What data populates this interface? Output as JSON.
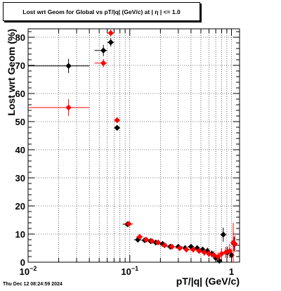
{
  "title": "Lost wrt Geom for Global vs pT/|q| (GeV/c) at |  η  | <= 1.0",
  "timestamp": "Thu Dec 12 08:24:59 2024",
  "colors": {
    "black_series": "#000000",
    "red_series": "#ff0000",
    "grid": "#000000"
  },
  "chart_data": {
    "type": "scatter",
    "title": "Lost wrt Geom for Global vs pT/|q| (GeV/c) at |  η  | <= 1.0",
    "xlabel": "pT/|q| (GeV/c)",
    "ylabel": "Lost wrt Geom (%)",
    "x_scale": "log",
    "xlim": [
      0.01,
      1.2
    ],
    "ylim": [
      0,
      83
    ],
    "grid": true,
    "x_ticks": [
      {
        "value": 0.01,
        "base": "10",
        "exp": "−2"
      },
      {
        "value": 0.1,
        "base": "10",
        "exp": "−1"
      },
      {
        "value": 1,
        "base": "1",
        "exp": ""
      }
    ],
    "y_ticks": [
      "0",
      "10",
      "20",
      "30",
      "40",
      "50",
      "60",
      "70",
      "80"
    ],
    "series": [
      {
        "color": "#000000",
        "points": [
          {
            "x": 0.025,
            "y": 69.8,
            "xlo": 0.01,
            "xhi": 0.04,
            "ey": 2.5
          },
          {
            "x": 0.055,
            "y": 75.3,
            "xlo": 0.045,
            "xhi": 0.06,
            "ey": 2.0
          },
          {
            "x": 0.065,
            "y": 78.2,
            "xlo": 0.06,
            "xhi": 0.07,
            "ey": 1.5
          },
          {
            "x": 0.075,
            "y": 47.8,
            "xlo": 0.07,
            "xhi": 0.08,
            "ey": 1.0
          },
          {
            "x": 0.095,
            "y": 13.5,
            "xlo": 0.085,
            "xhi": 0.105,
            "ey": 0.8
          },
          {
            "x": 0.12,
            "y": 8.0,
            "xlo": 0.11,
            "xhi": 0.13,
            "ey": 0.8
          },
          {
            "x": 0.14,
            "y": 7.8,
            "xlo": 0.13,
            "xhi": 0.15,
            "ey": 0.8
          },
          {
            "x": 0.16,
            "y": 7.5,
            "xlo": 0.15,
            "xhi": 0.17,
            "ey": 0.8
          },
          {
            "x": 0.18,
            "y": 7.0,
            "xlo": 0.17,
            "xhi": 0.19,
            "ey": 0.8
          },
          {
            "x": 0.21,
            "y": 6.5,
            "xlo": 0.19,
            "xhi": 0.23,
            "ey": 0.8
          },
          {
            "x": 0.25,
            "y": 5.5,
            "xlo": 0.23,
            "xhi": 0.27,
            "ey": 0.8
          },
          {
            "x": 0.3,
            "y": 5.5,
            "xlo": 0.27,
            "xhi": 0.33,
            "ey": 0.8
          },
          {
            "x": 0.35,
            "y": 5.0,
            "xlo": 0.33,
            "xhi": 0.37,
            "ey": 0.8
          },
          {
            "x": 0.4,
            "y": 5.5,
            "xlo": 0.37,
            "xhi": 0.43,
            "ey": 0.8
          },
          {
            "x": 0.46,
            "y": 5.0,
            "xlo": 0.43,
            "xhi": 0.49,
            "ey": 1.0
          },
          {
            "x": 0.52,
            "y": 4.5,
            "xlo": 0.49,
            "xhi": 0.55,
            "ey": 1.0
          },
          {
            "x": 0.58,
            "y": 4.0,
            "xlo": 0.55,
            "xhi": 0.61,
            "ey": 1.2
          },
          {
            "x": 0.64,
            "y": 3.0,
            "xlo": 0.61,
            "xhi": 0.67,
            "ey": 1.2
          },
          {
            "x": 0.7,
            "y": 1.5,
            "xlo": 0.67,
            "xhi": 0.73,
            "ey": 1.5
          },
          {
            "x": 0.76,
            "y": 0.5,
            "xlo": 0.73,
            "xhi": 0.79,
            "ey": 1.5
          },
          {
            "x": 0.83,
            "y": 9.8,
            "xlo": 0.79,
            "xhi": 0.87,
            "ey": 2.5
          },
          {
            "x": 0.91,
            "y": 3.5,
            "xlo": 0.87,
            "xhi": 0.95,
            "ey": 2.0
          },
          {
            "x": 1.0,
            "y": 2.5,
            "xlo": 0.95,
            "xhi": 1.05,
            "ey": 2.0
          },
          {
            "x": 1.06,
            "y": 6.5,
            "xlo": 1.03,
            "xhi": 1.1,
            "ey": 2.5
          }
        ]
      },
      {
        "color": "#ff0000",
        "points": [
          {
            "x": 0.025,
            "y": 55.0,
            "xlo": 0.01,
            "xhi": 0.04,
            "ey": 3.0
          },
          {
            "x": 0.055,
            "y": 70.8,
            "xlo": 0.045,
            "xhi": 0.06,
            "ey": 1.5
          },
          {
            "x": 0.065,
            "y": 81.5,
            "xlo": 0.06,
            "xhi": 0.07,
            "ey": 1.2
          },
          {
            "x": 0.075,
            "y": 50.5,
            "xlo": 0.07,
            "xhi": 0.08,
            "ey": 1.0
          },
          {
            "x": 0.098,
            "y": 13.6,
            "xlo": 0.088,
            "xhi": 0.108,
            "ey": 0.8
          },
          {
            "x": 0.125,
            "y": 9.0,
            "xlo": 0.115,
            "xhi": 0.135,
            "ey": 0.8
          },
          {
            "x": 0.145,
            "y": 8.0,
            "xlo": 0.135,
            "xhi": 0.155,
            "ey": 0.8
          },
          {
            "x": 0.165,
            "y": 7.5,
            "xlo": 0.155,
            "xhi": 0.175,
            "ey": 0.8
          },
          {
            "x": 0.19,
            "y": 7.0,
            "xlo": 0.18,
            "xhi": 0.2,
            "ey": 0.8
          },
          {
            "x": 0.22,
            "y": 6.0,
            "xlo": 0.2,
            "xhi": 0.24,
            "ey": 0.8
          },
          {
            "x": 0.26,
            "y": 5.5,
            "xlo": 0.24,
            "xhi": 0.28,
            "ey": 0.8
          },
          {
            "x": 0.31,
            "y": 5.0,
            "xlo": 0.28,
            "xhi": 0.34,
            "ey": 0.8
          },
          {
            "x": 0.36,
            "y": 4.5,
            "xlo": 0.34,
            "xhi": 0.38,
            "ey": 0.8
          },
          {
            "x": 0.42,
            "y": 4.5,
            "xlo": 0.38,
            "xhi": 0.46,
            "ey": 1.0
          },
          {
            "x": 0.48,
            "y": 4.0,
            "xlo": 0.46,
            "xhi": 0.5,
            "ey": 1.0
          },
          {
            "x": 0.54,
            "y": 3.5,
            "xlo": 0.5,
            "xhi": 0.58,
            "ey": 1.2
          },
          {
            "x": 0.6,
            "y": 3.0,
            "xlo": 0.58,
            "xhi": 0.62,
            "ey": 1.2
          },
          {
            "x": 0.67,
            "y": 2.5,
            "xlo": 0.62,
            "xhi": 0.72,
            "ey": 1.5
          },
          {
            "x": 0.74,
            "y": 2.0,
            "xlo": 0.72,
            "xhi": 0.76,
            "ey": 1.5
          },
          {
            "x": 0.8,
            "y": 3.0,
            "xlo": 0.76,
            "xhi": 0.84,
            "ey": 2.0
          },
          {
            "x": 0.88,
            "y": 3.5,
            "xlo": 0.84,
            "xhi": 0.92,
            "ey": 2.0
          },
          {
            "x": 0.96,
            "y": 4.0,
            "xlo": 0.92,
            "xhi": 1.0,
            "ey": 2.5
          },
          {
            "x": 1.04,
            "y": 7.0,
            "xlo": 1.0,
            "xhi": 1.08,
            "ey": 7.0
          },
          {
            "x": 1.08,
            "y": 6.5,
            "xlo": 1.05,
            "xhi": 1.11,
            "ey": 3.0
          }
        ]
      }
    ]
  }
}
